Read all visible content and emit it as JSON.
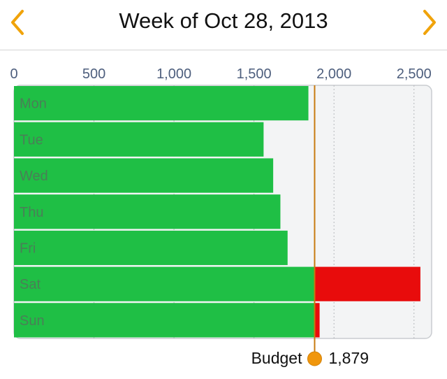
{
  "header": {
    "title": "Week of Oct 28, 2013",
    "prev_icon": "chevron-left-icon",
    "next_icon": "chevron-right-icon",
    "accent_color": "#f0a30a"
  },
  "chart_data": {
    "type": "bar",
    "orientation": "horizontal",
    "title": "",
    "xlabel": "",
    "ylabel": "",
    "xlim": [
      0,
      2640
    ],
    "xticks": [
      0,
      500,
      1000,
      1500,
      2000,
      2500
    ],
    "xtick_labels": [
      "0",
      "500",
      "1,000",
      "1,500",
      "2,000",
      "2,500"
    ],
    "grid": true,
    "categories": [
      "Mon",
      "Tue",
      "Wed",
      "Thu",
      "Fri",
      "Sat",
      "Sun"
    ],
    "values": [
      1840,
      1560,
      1620,
      1665,
      1710,
      2540,
      1910
    ],
    "budget": {
      "label": "Budget",
      "value": 1879,
      "value_label": "1,879"
    },
    "colors": {
      "under_budget": "#1fbf45",
      "over_budget": "#e80c0c",
      "budget_line": "#c77a10",
      "budget_marker": "#f0960c",
      "plot_background": "#f3f4f5"
    }
  }
}
